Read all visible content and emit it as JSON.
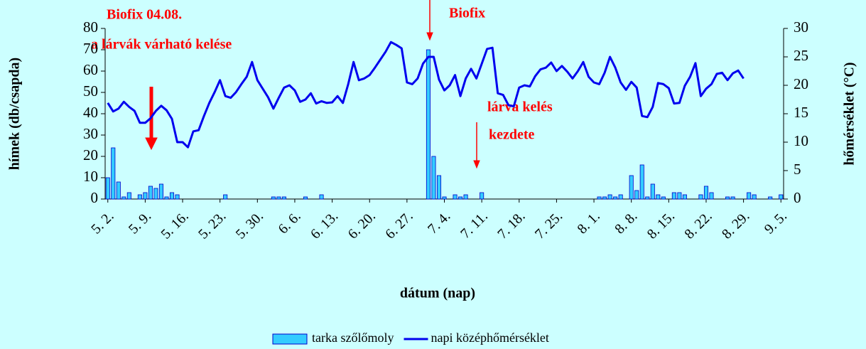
{
  "chart_data": {
    "type": "bar_line",
    "annotations": [
      "Biofix 04.08.",
      "a lárvák várható kelése",
      "Biofix",
      "lárva kelés",
      "kezdete"
    ],
    "ylabel": "hímek (db/csapda)",
    "y2label": "hőmérséklet (°C)",
    "xlabel": "dátum (nap)",
    "categories": [
      "5. 2.",
      null,
      null,
      null,
      null,
      null,
      null,
      "5. 9.",
      null,
      null,
      null,
      null,
      null,
      null,
      "5. 16.",
      null,
      null,
      null,
      null,
      null,
      null,
      "5. 23.",
      null,
      null,
      null,
      null,
      null,
      null,
      "5. 30.",
      null,
      null,
      null,
      null,
      null,
      null,
      "6. 6.",
      null,
      null,
      null,
      null,
      null,
      null,
      "6. 13.",
      null,
      null,
      null,
      null,
      null,
      null,
      "6. 20.",
      null,
      null,
      null,
      null,
      null,
      null,
      "6. 27.",
      null,
      null,
      null,
      null,
      null,
      null,
      "7. 4.",
      null,
      null,
      null,
      null,
      null,
      null,
      "7. 11.",
      null,
      null,
      null,
      null,
      null,
      null,
      "7. 18.",
      null,
      null,
      null,
      null,
      null,
      null,
      "7. 25.",
      null,
      null,
      null,
      null,
      null,
      null,
      "8. 1.",
      null,
      null,
      null,
      null,
      null,
      null,
      "8. 8.",
      null,
      null,
      null,
      null,
      null,
      null,
      "8. 15.",
      null,
      null,
      null,
      null,
      null,
      null,
      "8. 22.",
      null,
      null,
      null,
      null,
      null,
      null,
      "8. 29.",
      null,
      null,
      null,
      null,
      null,
      null,
      "9. 5."
    ],
    "series": [
      {
        "name": "tarka szőlőmoly",
        "kind": "bar",
        "color": "#33ccff",
        "axis": "y",
        "values": [
          10,
          24,
          8,
          1,
          3,
          0,
          2,
          3,
          6,
          5,
          7,
          1,
          3,
          2,
          0,
          0,
          0,
          0,
          0,
          0,
          0,
          0,
          2,
          0,
          0,
          0,
          0,
          0,
          0,
          0,
          0,
          1,
          1,
          1,
          0,
          0,
          0,
          1,
          0,
          0,
          2,
          0,
          0,
          0,
          0,
          0,
          0,
          0,
          0,
          0,
          0,
          0,
          0,
          0,
          0,
          0,
          0,
          0,
          0,
          0,
          70,
          20,
          11,
          1,
          0,
          2,
          1,
          2,
          0,
          0,
          3,
          0,
          0,
          0,
          0,
          0,
          0,
          0,
          0,
          0,
          0,
          0,
          0,
          0,
          0,
          0,
          0,
          0,
          0,
          0,
          0,
          0,
          1,
          1,
          2,
          1,
          2,
          0,
          11,
          4,
          16,
          1,
          7,
          2,
          1,
          0,
          3,
          3,
          2,
          0,
          0,
          2,
          6,
          3,
          0,
          0,
          1,
          1,
          0,
          0,
          3,
          2,
          0,
          0,
          1,
          0,
          2
        ]
      },
      {
        "name": "napi középhőmérséklet",
        "kind": "line",
        "color": "#0000ee",
        "axis": "y2",
        "values": [
          16.9,
          15.4,
          15.9,
          17.1,
          16.2,
          15.5,
          13.4,
          13.4,
          14.2,
          15.5,
          16.4,
          15.6,
          14.1,
          10.0,
          10.0,
          9.1,
          11.9,
          12.1,
          14.6,
          16.9,
          18.8,
          20.9,
          18.1,
          17.8,
          18.8,
          20.2,
          21.5,
          24.1,
          20.9,
          19.4,
          17.9,
          15.9,
          17.8,
          19.6,
          20.0,
          19.1,
          17.1,
          17.5,
          18.6,
          16.8,
          17.2,
          16.9,
          17.0,
          18.1,
          16.9,
          20.2,
          24.1,
          20.9,
          21.2,
          21.8,
          23.1,
          24.5,
          25.9,
          27.6,
          27.1,
          26.5,
          20.5,
          20.2,
          21.2,
          23.8,
          25.0,
          25.0,
          21.0,
          19.1,
          20.0,
          21.8,
          18.1,
          21.2,
          22.9,
          21.2,
          23.8,
          26.4,
          26.6,
          18.6,
          18.3,
          16.5,
          16.3,
          19.6,
          20.0,
          19.8,
          21.6,
          22.8,
          23.1,
          24.0,
          22.5,
          23.4,
          22.4,
          21.2,
          22.5,
          24.1,
          21.5,
          20.5,
          20.2,
          22.2,
          25.0,
          23.1,
          20.5,
          19.2,
          20.6,
          19.6,
          14.6,
          14.4,
          16.2,
          20.4,
          20.2,
          19.5,
          16.8,
          16.9,
          19.9,
          21.5,
          23.9,
          18.1,
          19.4,
          20.2,
          22.0,
          22.2,
          20.9,
          22.1,
          22.6,
          21.2,
          null,
          null,
          null,
          null,
          null,
          null,
          null
        ]
      }
    ],
    "ylim": [
      0,
      80
    ],
    "yticks": [
      0,
      10,
      20,
      30,
      40,
      50,
      60,
      70,
      80
    ],
    "y2lim": [
      0,
      30
    ],
    "y2ticks": [
      0,
      5,
      10,
      15,
      20,
      25,
      30
    ],
    "grid": false,
    "legend": "bottom"
  }
}
